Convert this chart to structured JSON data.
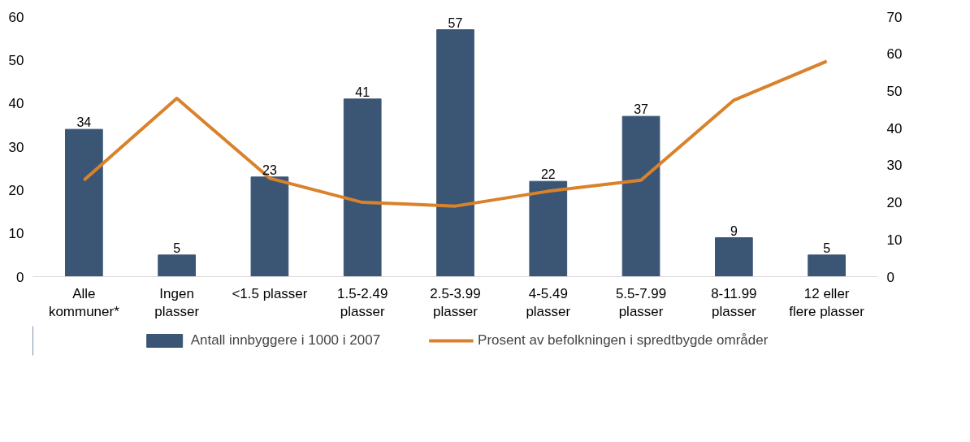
{
  "chart_data": {
    "type": "bar",
    "categories": [
      "Alle\nkommuner*",
      "Ingen\nplasser",
      "<1.5 plasser",
      "1.5-2.49\nplasser",
      "2.5-3.99\nplasser",
      "4-5.49\nplasser",
      "5.5-7.99\nplasser",
      "8-11.99\nplasser",
      "12 eller\nflere plasser"
    ],
    "series": [
      {
        "name": "Antall innbyggere i 1000 i 2007",
        "color": "#3b5675",
        "values": [
          34,
          5,
          23,
          41,
          57,
          22,
          37,
          9,
          5
        ],
        "value_labels": [
          "34",
          "5",
          "23",
          "41",
          "57",
          "22",
          "37",
          "9",
          "5"
        ]
      },
      {
        "name": "Prosent av befolkningen i spredtbygde områder",
        "type": "line",
        "axis": "y2",
        "color": "#d9822b",
        "values": [
          26,
          48,
          26.5,
          20,
          19,
          23,
          26,
          47.5,
          58
        ]
      }
    ],
    "ylim": [
      0,
      60
    ],
    "yticks": [
      0,
      10,
      20,
      30,
      40,
      50,
      60
    ],
    "y2lim": [
      0,
      70
    ],
    "y2ticks": [
      0,
      10,
      20,
      30,
      40,
      50,
      60,
      70
    ],
    "grid": false,
    "legend": "bottom",
    "marker": "none",
    "line_style": "solid"
  }
}
